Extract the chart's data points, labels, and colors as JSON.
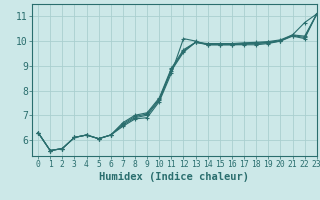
{
  "xlabel": "Humidex (Indice chaleur)",
  "bg_color": "#cce8e8",
  "line_color": "#2a6e6e",
  "grid_color": "#aacfcf",
  "xlim": [
    -0.5,
    23
  ],
  "ylim": [
    5.35,
    11.5
  ],
  "xticks": [
    0,
    1,
    2,
    3,
    4,
    5,
    6,
    7,
    8,
    9,
    10,
    11,
    12,
    13,
    14,
    15,
    16,
    17,
    18,
    19,
    20,
    21,
    22,
    23
  ],
  "yticks": [
    6,
    7,
    8,
    9,
    10,
    11
  ],
  "lines": [
    [
      6.3,
      5.57,
      5.65,
      6.1,
      6.2,
      6.05,
      6.2,
      6.55,
      6.85,
      6.9,
      7.55,
      8.7,
      10.1,
      10.0,
      9.85,
      9.85,
      9.85,
      9.85,
      9.85,
      9.9,
      10.0,
      10.25,
      10.75,
      11.1
    ],
    [
      6.3,
      5.57,
      5.65,
      6.1,
      6.2,
      6.05,
      6.2,
      6.6,
      6.9,
      7.0,
      7.6,
      8.8,
      9.55,
      9.95,
      9.85,
      9.85,
      9.85,
      9.88,
      9.9,
      9.93,
      10.0,
      10.2,
      10.1,
      11.1
    ],
    [
      6.3,
      5.57,
      5.65,
      6.1,
      6.2,
      6.05,
      6.2,
      6.65,
      6.95,
      7.05,
      7.65,
      8.85,
      9.6,
      9.95,
      9.88,
      9.88,
      9.88,
      9.9,
      9.92,
      9.95,
      10.02,
      10.22,
      10.15,
      11.1
    ],
    [
      6.3,
      5.57,
      5.65,
      6.1,
      6.2,
      6.05,
      6.2,
      6.7,
      7.0,
      7.1,
      7.7,
      8.9,
      9.65,
      9.95,
      9.9,
      9.9,
      9.9,
      9.93,
      9.95,
      9.98,
      10.05,
      10.25,
      10.2,
      11.1
    ]
  ],
  "fontsize_xlabel": 7.5,
  "xtick_fontsize": 5.8,
  "ytick_fontsize": 7
}
